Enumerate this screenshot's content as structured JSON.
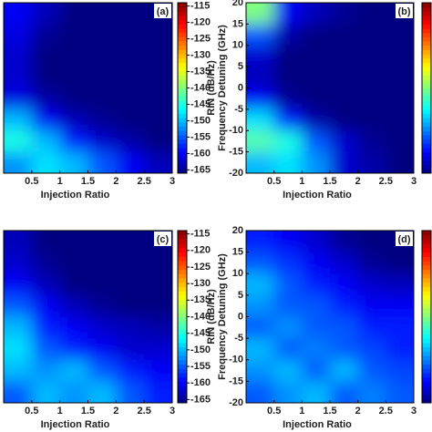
{
  "chart_data": [
    {
      "type": "heatmap",
      "label": "(a)",
      "xlabel": "Injection Ratio",
      "colorbar_label": "RIN (dB/Hz)",
      "xlim": [
        0,
        3
      ],
      "ylim": [
        -20,
        20
      ],
      "xticks": [
        0.5,
        1,
        1.5,
        2,
        2.5,
        3
      ],
      "clim": [
        -166,
        -114
      ],
      "cticks": [
        -115,
        -120,
        -125,
        -130,
        -135,
        -140,
        -145,
        -150,
        -155,
        -160,
        -165
      ],
      "x": [
        0.25,
        0.75,
        1.25,
        1.75,
        2.25,
        2.75
      ],
      "y": [
        17.5,
        12.5,
        7.5,
        2.5,
        -2.5,
        -7.5,
        -12.5,
        -17.5
      ],
      "z": [
        [
          -160,
          -163,
          -166,
          -166,
          -166,
          -166
        ],
        [
          -161,
          -165,
          -166,
          -166,
          -166,
          -166
        ],
        [
          -162,
          -166,
          -166,
          -166,
          -166,
          -166
        ],
        [
          -162,
          -166,
          -166,
          -166,
          -166,
          -166
        ],
        [
          -161,
          -164,
          -166,
          -166,
          -166,
          -166
        ],
        [
          -150,
          -160,
          -163,
          -165,
          -166,
          -166
        ],
        [
          -145,
          -150,
          -158,
          -162,
          -164,
          -166
        ],
        [
          -152,
          -148,
          -150,
          -155,
          -160,
          -163
        ]
      ]
    },
    {
      "type": "heatmap",
      "label": "(b)",
      "xlabel": "Injection Ratio",
      "ylabel": "Frequency Detuning (GHz)",
      "xlim": [
        0,
        3
      ],
      "ylim": [
        -20,
        20
      ],
      "xticks": [
        0.5,
        1,
        1.5,
        2,
        2.5,
        3
      ],
      "yticks": [
        -20,
        -15,
        -10,
        -5,
        0,
        5,
        10,
        15,
        20
      ],
      "clim": [
        -166,
        -114
      ],
      "x": [
        0.25,
        0.75,
        1.25,
        1.75,
        2.25,
        2.75
      ],
      "y": [
        17.5,
        12.5,
        7.5,
        2.5,
        -2.5,
        -7.5,
        -12.5,
        -17.5
      ],
      "z": [
        [
          -140,
          -160,
          -163,
          -165,
          -166,
          -166
        ],
        [
          -155,
          -164,
          -166,
          -166,
          -166,
          -166
        ],
        [
          -162,
          -166,
          -166,
          -166,
          -166,
          -166
        ],
        [
          -163,
          -166,
          -166,
          -166,
          -166,
          -166
        ],
        [
          -160,
          -165,
          -166,
          -166,
          -166,
          -166
        ],
        [
          -148,
          -158,
          -164,
          -166,
          -166,
          -166
        ],
        [
          -142,
          -145,
          -155,
          -162,
          -165,
          -166
        ],
        [
          -150,
          -148,
          -152,
          -162,
          -164,
          -166
        ]
      ]
    },
    {
      "type": "heatmap",
      "label": "(c)",
      "xlabel": "Injection Ratio",
      "colorbar_label": "RIN (dB/Hz)",
      "xlim": [
        0,
        3
      ],
      "ylim": [
        -20,
        20
      ],
      "xticks": [
        0.5,
        1,
        1.5,
        2,
        2.5,
        3
      ],
      "clim": [
        -166,
        -114
      ],
      "cticks": [
        -115,
        -120,
        -125,
        -130,
        -135,
        -140,
        -145,
        -150,
        -155,
        -160,
        -165
      ],
      "x": [
        0.25,
        0.75,
        1.25,
        1.75,
        2.25,
        2.75
      ],
      "y": [
        17.5,
        12.5,
        7.5,
        2.5,
        -2.5,
        -7.5,
        -12.5,
        -17.5
      ],
      "z": [
        [
          -163,
          -166,
          -166,
          -166,
          -166,
          -166
        ],
        [
          -162,
          -165,
          -166,
          -166,
          -166,
          -166
        ],
        [
          -160,
          -163,
          -166,
          -166,
          -166,
          -166
        ],
        [
          -155,
          -160,
          -163,
          -165,
          -166,
          -166
        ],
        [
          -150,
          -158,
          -160,
          -162,
          -163,
          -164
        ],
        [
          -148,
          -155,
          -158,
          -160,
          -162,
          -162
        ],
        [
          -150,
          -152,
          -150,
          -155,
          -158,
          -160
        ],
        [
          -155,
          -150,
          -152,
          -150,
          -155,
          -158
        ]
      ]
    },
    {
      "type": "heatmap",
      "label": "(d)",
      "xlabel": "Injection Ratio",
      "ylabel": "Frequency Detuning (GHz)",
      "xlim": [
        0,
        3
      ],
      "ylim": [
        -20,
        20
      ],
      "xticks": [
        0.5,
        1,
        1.5,
        2,
        2.5,
        3
      ],
      "yticks": [
        -20,
        -15,
        -10,
        -5,
        0,
        5,
        10,
        15,
        20
      ],
      "clim": [
        -166,
        -114
      ],
      "x": [
        0.25,
        0.75,
        1.25,
        1.75,
        2.25,
        2.75
      ],
      "y": [
        17.5,
        12.5,
        7.5,
        2.5,
        -2.5,
        -7.5,
        -12.5,
        -17.5
      ],
      "z": [
        [
          -158,
          -160,
          -162,
          -165,
          -166,
          -166
        ],
        [
          -155,
          -157,
          -160,
          -162,
          -165,
          -166
        ],
        [
          -150,
          -155,
          -158,
          -160,
          -162,
          -163
        ],
        [
          -152,
          -155,
          -155,
          -158,
          -160,
          -160
        ],
        [
          -155,
          -152,
          -155,
          -155,
          -158,
          -158
        ],
        [
          -150,
          -155,
          -153,
          -155,
          -156,
          -158
        ],
        [
          -152,
          -150,
          -155,
          -150,
          -155,
          -156
        ],
        [
          -155,
          -152,
          -150,
          -155,
          -153,
          -155
        ]
      ]
    }
  ]
}
